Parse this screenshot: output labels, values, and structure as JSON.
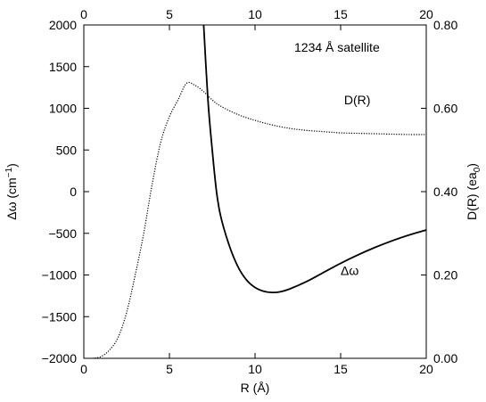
{
  "chart_data": {
    "type": "line",
    "annotation": "1234 Å satellite",
    "xlabel": "R (Å)",
    "ylabel_left": {
      "prefix": "Δω (cm",
      "sup": "−1",
      "suffix": ")"
    },
    "ylabel_right": {
      "prefix": "D(R) (ea",
      "sub": "0",
      "suffix": ")"
    },
    "xlim": [
      0,
      20
    ],
    "ylim_left": [
      -2000,
      2000
    ],
    "ylim_right": [
      0.0,
      0.8
    ],
    "x_ticks": [
      "0",
      "5",
      "10",
      "15",
      "20"
    ],
    "x_top_ticks": [
      "0",
      "5",
      "10",
      "15",
      "20"
    ],
    "y_left_ticks": [
      "-2000",
      "-1500",
      "-1000",
      "-500",
      "0",
      "500",
      "1000",
      "1500",
      "2000"
    ],
    "y_right_ticks": [
      "0.00",
      "0.20",
      "0.40",
      "0.60",
      "0.80"
    ],
    "series": [
      {
        "name": "D(R)",
        "axis": "right",
        "style": "dotted",
        "x": [
          0.5,
          1,
          1.5,
          2,
          2.5,
          3,
          3.5,
          4,
          4.5,
          5,
          5.5,
          6,
          6.5,
          7,
          7.5,
          8,
          9,
          10,
          11,
          12,
          13,
          14,
          15,
          16,
          17,
          18,
          19,
          20
        ],
        "values": [
          0.0,
          0.004,
          0.02,
          0.05,
          0.11,
          0.2,
          0.3,
          0.42,
          0.52,
          0.58,
          0.62,
          0.66,
          0.655,
          0.64,
          0.62,
          0.605,
          0.585,
          0.571,
          0.56,
          0.552,
          0.547,
          0.544,
          0.541,
          0.54,
          0.539,
          0.538,
          0.537,
          0.537
        ]
      },
      {
        "name": "Δω",
        "axis": "left",
        "style": "solid",
        "x": [
          7.0,
          7.25,
          7.5,
          7.75,
          8,
          8.5,
          9,
          9.5,
          10,
          10.5,
          11,
          11.5,
          12,
          13,
          14,
          15,
          16,
          17,
          18,
          19,
          20
        ],
        "values": [
          2000,
          1100,
          500,
          0,
          -300,
          -650,
          -900,
          -1060,
          -1150,
          -1195,
          -1210,
          -1200,
          -1170,
          -1080,
          -970,
          -860,
          -760,
          -670,
          -590,
          -520,
          -460
        ]
      }
    ],
    "label_positions_data": {
      "D(R)": {
        "x": 15.2,
        "y_right": 0.61
      },
      "Δω": {
        "x": 15.0,
        "y_left": -1000
      }
    },
    "grid": false
  }
}
